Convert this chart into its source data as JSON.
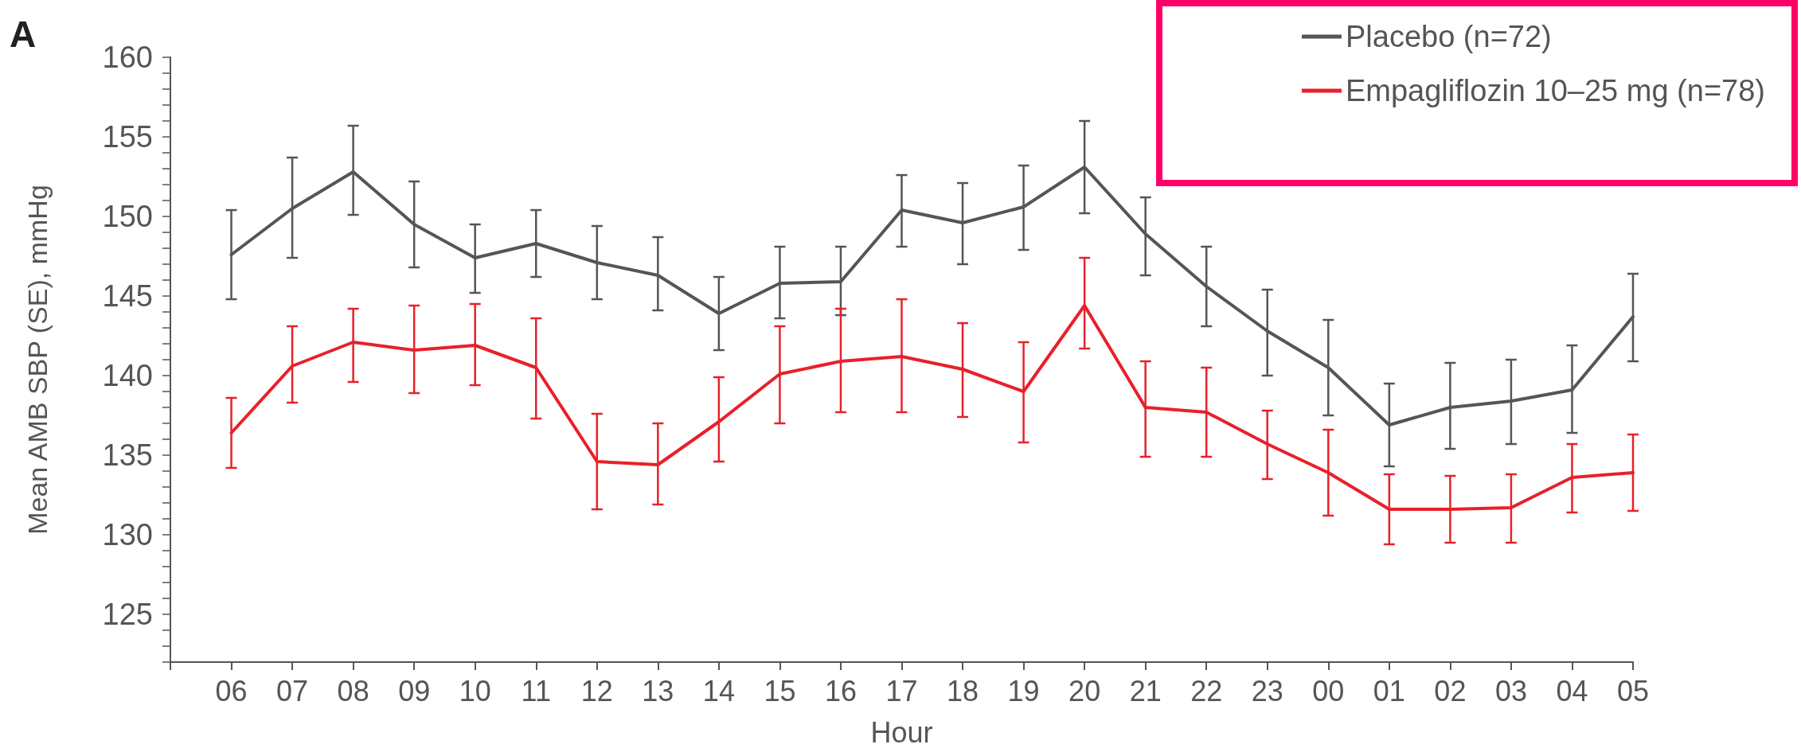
{
  "chart_data": {
    "type": "line",
    "xlabel": "Hour",
    "ylabel": "Mean AMB SBP (SE), mmHg",
    "annotations": [
      "A"
    ],
    "categories": [
      null,
      "06",
      "07",
      "08",
      "09",
      "10",
      "11",
      "12",
      "13",
      "14",
      "15",
      "16",
      "17",
      "18",
      "19",
      "20",
      "21",
      "22",
      "23",
      "00",
      "01",
      "02",
      "03",
      "04",
      "05"
    ],
    "ylim": [
      122,
      160
    ],
    "yticks": [
      {
        "value": 122,
        "label": null
      },
      {
        "value": 123,
        "label": null
      },
      {
        "value": 124,
        "label": null
      },
      125,
      {
        "value": 126,
        "label": null
      },
      {
        "value": 127,
        "label": null
      },
      {
        "value": 128,
        "label": null
      },
      {
        "value": 129,
        "label": null
      },
      130,
      {
        "value": 131,
        "label": null
      },
      {
        "value": 132,
        "label": null
      },
      {
        "value": 133,
        "label": null
      },
      {
        "value": 134,
        "label": null
      },
      135,
      {
        "value": 136,
        "label": null
      },
      {
        "value": 137,
        "label": null
      },
      {
        "value": 138,
        "label": null
      },
      {
        "value": 139,
        "label": null
      },
      140,
      {
        "value": 141,
        "label": null
      },
      {
        "value": 142,
        "label": null
      },
      {
        "value": 143,
        "label": null
      },
      {
        "value": 144,
        "label": null
      },
      145,
      {
        "value": 146,
        "label": null
      },
      {
        "value": 147,
        "label": null
      },
      {
        "value": 148,
        "label": null
      },
      {
        "value": 149,
        "label": null
      },
      150,
      {
        "value": 151,
        "label": null
      },
      {
        "value": 152,
        "label": null
      },
      {
        "value": 153,
        "label": null
      },
      {
        "value": 154,
        "label": null
      },
      155,
      {
        "value": 156,
        "label": null
      },
      {
        "value": 157,
        "label": null
      },
      {
        "value": 158,
        "label": null
      },
      {
        "value": 159,
        "label": null
      },
      160
    ],
    "grid": false,
    "legend": "top right",
    "marker": "none",
    "line_style": "solid",
    "series": [
      {
        "name": "Placebo (n=72)",
        "color": "#555555",
        "values": [
          null,
          147.6,
          150.5,
          152.8,
          149.5,
          147.4,
          148.3,
          147.1,
          146.3,
          143.9,
          145.8,
          145.9,
          150.4,
          149.6,
          150.6,
          153.1,
          148.9,
          145.6,
          142.8,
          140.5,
          136.9,
          138.0,
          138.4,
          139.1,
          143.7
        ],
        "errors": [
          null,
          [
            144.8,
            150.4
          ],
          [
            147.4,
            153.7
          ],
          [
            150.1,
            155.7
          ],
          [
            146.8,
            152.2
          ],
          [
            145.2,
            149.5
          ],
          [
            146.2,
            150.4
          ],
          [
            144.8,
            149.4
          ],
          [
            144.1,
            148.7
          ],
          [
            141.6,
            146.2
          ],
          [
            143.6,
            148.1
          ],
          [
            143.8,
            148.1
          ],
          [
            148.1,
            152.6
          ],
          [
            147.0,
            152.1
          ],
          [
            147.9,
            153.2
          ],
          [
            150.2,
            156.0
          ],
          [
            146.3,
            151.2
          ],
          [
            143.1,
            148.1
          ],
          [
            140.0,
            145.4
          ],
          [
            137.5,
            143.5
          ],
          [
            134.3,
            139.5
          ],
          [
            135.4,
            140.8
          ],
          [
            135.7,
            141.0
          ],
          [
            136.4,
            141.9
          ],
          [
            140.9,
            146.4
          ]
        ]
      },
      {
        "name": "Empagliflozin 10–25 mg (n=78)",
        "color": "#e8202a",
        "values": [
          null,
          136.4,
          140.6,
          142.1,
          141.6,
          141.9,
          140.5,
          134.6,
          134.4,
          137.1,
          140.1,
          140.9,
          141.2,
          140.4,
          139.0,
          144.4,
          138.0,
          137.7,
          135.7,
          133.9,
          131.6,
          131.6,
          131.7,
          133.6,
          133.9
        ],
        "errors": [
          null,
          [
            134.2,
            138.6
          ],
          [
            138.3,
            143.1
          ],
          [
            139.6,
            144.2
          ],
          [
            138.9,
            144.4
          ],
          [
            139.4,
            144.5
          ],
          [
            137.3,
            143.6
          ],
          [
            131.6,
            137.6
          ],
          [
            131.9,
            137.0
          ],
          [
            134.6,
            139.9
          ],
          [
            137.0,
            143.1
          ],
          [
            137.7,
            144.2
          ],
          [
            137.7,
            144.8
          ],
          [
            137.4,
            143.3
          ],
          [
            135.8,
            142.1
          ],
          [
            141.7,
            147.4
          ],
          [
            134.9,
            140.9
          ],
          [
            134.9,
            140.5
          ],
          [
            133.5,
            137.8
          ],
          [
            131.2,
            136.6
          ],
          [
            129.4,
            133.8
          ],
          [
            129.5,
            133.7
          ],
          [
            129.5,
            133.8
          ],
          [
            131.4,
            135.7
          ],
          [
            131.5,
            136.3
          ]
        ]
      }
    ]
  }
}
